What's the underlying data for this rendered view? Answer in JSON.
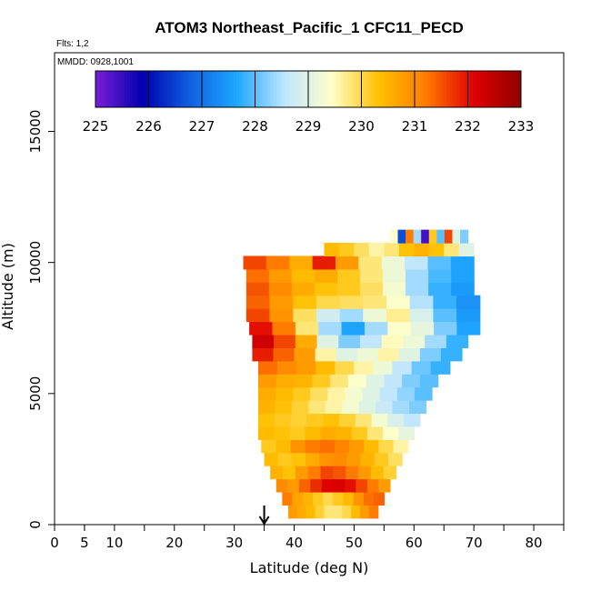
{
  "chart_data": {
    "type": "heatmap",
    "title": "ATOM3 Northeast_Pacific_1 CFC11_PECD",
    "flights_label": "Flts: 1,2",
    "dates_label": "MMDD: 0928,1001",
    "xlabel": "Latitude (deg N)",
    "ylabel": "Altitude (m)",
    "xlim": [
      0,
      85
    ],
    "ylim": [
      0,
      18000
    ],
    "x_ticks": [
      0,
      5,
      10,
      20,
      30,
      40,
      50,
      60,
      70,
      80
    ],
    "x_minor_ticks": [
      5,
      15,
      25,
      35,
      45,
      55,
      65,
      75,
      85
    ],
    "y_ticks": [
      0,
      5000,
      10000,
      15000
    ],
    "colorbar": {
      "min": 225,
      "max": 233,
      "ticks": [
        225,
        226,
        227,
        228,
        229,
        230,
        231,
        232,
        233
      ],
      "stops": [
        "#7a1fd6",
        "#0000b0",
        "#1060e0",
        "#1ea8ff",
        "#bfe6ff",
        "#ffffc8",
        "#ffc000",
        "#ff7a00",
        "#e00000",
        "#900000"
      ]
    },
    "marker": {
      "latitude": 35,
      "symbol": "arrow-down"
    },
    "rows": [
      {
        "alt": 500,
        "lat_start": 39,
        "lat_end": 54,
        "values": [
          230.8,
          230.6,
          230.4,
          230.1,
          229.8,
          229.8,
          230.0,
          230.4,
          230.8,
          231.2
        ]
      },
      {
        "alt": 1000,
        "lat_start": 38,
        "lat_end": 55,
        "values": [
          231.2,
          230.7,
          230.5,
          230.2,
          230.0,
          230.2,
          230.4,
          230.9,
          231.3,
          231.4
        ]
      },
      {
        "alt": 1500,
        "lat_start": 37,
        "lat_end": 56,
        "values": [
          231.0,
          230.8,
          231.4,
          231.8,
          232.1,
          232.2,
          232.0,
          231.6,
          231.2,
          230.8
        ]
      },
      {
        "alt": 2000,
        "lat_start": 36,
        "lat_end": 57,
        "values": [
          230.5,
          230.3,
          230.8,
          231.2,
          231.6,
          231.5,
          231.2,
          230.8,
          230.4,
          230.1
        ]
      },
      {
        "alt": 2500,
        "lat_start": 35,
        "lat_end": 58,
        "values": [
          230.4,
          230.2,
          230.3,
          230.6,
          230.9,
          231.0,
          230.8,
          230.5,
          230.2,
          229.9
        ]
      },
      {
        "alt": 3000,
        "lat_start": 34.5,
        "lat_end": 59,
        "values": [
          230.2,
          230.4,
          230.9,
          231.2,
          231.3,
          231.1,
          230.8,
          230.4,
          230.0,
          229.6
        ]
      },
      {
        "alt": 3500,
        "lat_start": 34,
        "lat_end": 60,
        "values": [
          230.4,
          230.3,
          230.2,
          230.4,
          230.6,
          230.5,
          230.2,
          229.8,
          229.4,
          229.1
        ]
      },
      {
        "alt": 4000,
        "lat_start": 34,
        "lat_end": 61,
        "values": [
          230.3,
          230.2,
          230.1,
          230.2,
          230.3,
          230.1,
          229.8,
          229.3,
          228.9,
          228.6
        ]
      },
      {
        "alt": 4500,
        "lat_start": 34,
        "lat_end": 62,
        "values": [
          230.5,
          230.3,
          230.1,
          229.8,
          229.6,
          229.3,
          229.0,
          228.7,
          228.4,
          228.2
        ]
      },
      {
        "alt": 5000,
        "lat_start": 34,
        "lat_end": 63,
        "values": [
          230.6,
          230.4,
          230.2,
          229.9,
          229.6,
          229.3,
          229.0,
          228.6,
          228.3,
          228.0
        ]
      },
      {
        "alt": 5500,
        "lat_start": 34,
        "lat_end": 64,
        "values": [
          230.8,
          230.6,
          230.5,
          230.2,
          229.8,
          229.4,
          229.0,
          228.6,
          228.2,
          228.0
        ]
      },
      {
        "alt": 6000,
        "lat_start": 34,
        "lat_end": 66,
        "values": [
          231.3,
          231.0,
          230.8,
          230.4,
          230.0,
          229.6,
          229.2,
          228.6,
          228.1,
          227.8
        ]
      },
      {
        "alt": 6500,
        "lat_start": 33,
        "lat_end": 68,
        "values": [
          231.9,
          231.4,
          230.8,
          229.6,
          229.0,
          229.2,
          229.6,
          229.0,
          228.2,
          227.8
        ]
      },
      {
        "alt": 7000,
        "lat_start": 33,
        "lat_end": 69,
        "values": [
          232.3,
          231.6,
          230.6,
          229.0,
          228.2,
          228.6,
          229.5,
          229.2,
          228.4,
          227.8
        ]
      },
      {
        "alt": 7500,
        "lat_start": 32.5,
        "lat_end": 71,
        "values": [
          232.0,
          231.2,
          229.8,
          228.4,
          227.6,
          228.4,
          229.4,
          229.1,
          228.2,
          227.6
        ]
      },
      {
        "alt": 8000,
        "lat_start": 32,
        "lat_end": 71,
        "values": [
          231.6,
          230.9,
          229.9,
          228.8,
          228.4,
          229.2,
          229.7,
          228.9,
          228.0,
          227.5
        ]
      },
      {
        "alt": 8500,
        "lat_start": 32,
        "lat_end": 71,
        "values": [
          231.4,
          230.8,
          230.3,
          230.0,
          229.9,
          229.8,
          229.4,
          228.5,
          227.8,
          227.4
        ]
      },
      {
        "alt": 9000,
        "lat_start": 32,
        "lat_end": 70,
        "values": [
          231.5,
          231.0,
          230.6,
          230.3,
          230.2,
          229.9,
          229.3,
          228.4,
          227.8,
          227.5
        ]
      },
      {
        "alt": 9500,
        "lat_start": 32,
        "lat_end": 70,
        "values": [
          231.3,
          230.8,
          230.4,
          230.6,
          230.2,
          229.8,
          229.2,
          228.4,
          227.9,
          227.6
        ]
      },
      {
        "alt": 10000,
        "lat_start": 31.5,
        "lat_end": 70,
        "values": [
          231.6,
          231.2,
          230.6,
          231.9,
          230.8,
          229.8,
          229.2,
          228.6,
          228.0,
          227.6
        ]
      },
      {
        "alt": 10500,
        "lat_start": 45,
        "lat_end": 70,
        "values": [
          230.4,
          230.2,
          229.9,
          229.6,
          229.8,
          230.3,
          230.5,
          230.3,
          229.8,
          229.0
        ]
      },
      {
        "alt": 11000,
        "lat_start": 56,
        "lat_end": 69,
        "values": [
          229.4,
          226.6,
          231.2,
          228.4,
          225.4,
          230.2,
          228.0,
          231.6,
          229.0,
          228.2
        ]
      }
    ]
  }
}
